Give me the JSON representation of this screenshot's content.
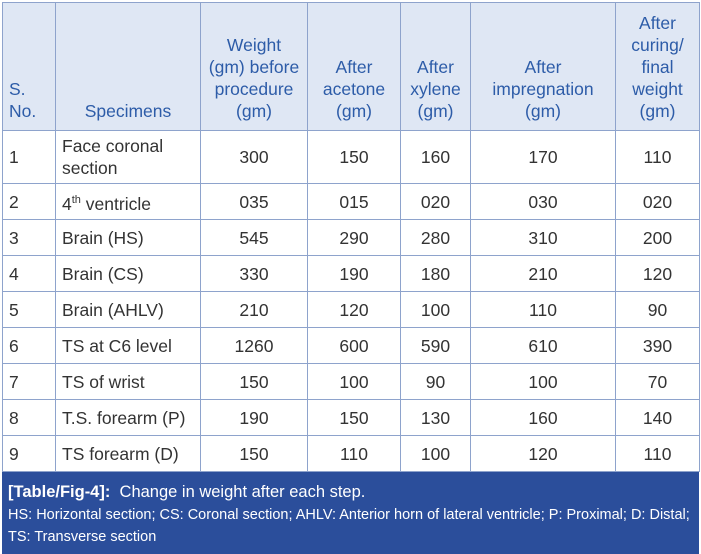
{
  "table": {
    "header": [
      "S. No.",
      "Specimens",
      "Weight (gm) before procedure (gm)",
      "After acetone (gm)",
      "After xylene (gm)",
      "After impregnation (gm)",
      "After curing/ final weight (gm)"
    ],
    "rows": [
      [
        "1",
        "Face coronal section",
        "300",
        "150",
        "160",
        "170",
        "110"
      ],
      [
        "2",
        {
          "base": "4",
          "sup": "th",
          "text": " ventricle"
        },
        "035",
        "015",
        "020",
        "030",
        "020"
      ],
      [
        "3",
        "Brain (HS)",
        "545",
        "290",
        "280",
        "310",
        "200"
      ],
      [
        "4",
        "Brain (CS)",
        "330",
        "190",
        "180",
        "210",
        "120"
      ],
      [
        "5",
        "Brain (AHLV)",
        "210",
        "120",
        "100",
        "110",
        "90"
      ],
      [
        "6",
        "TS at C6 level",
        "1260",
        "600",
        "590",
        "610",
        "390"
      ],
      [
        "7",
        "TS of wrist",
        "150",
        "100",
        "90",
        "100",
        "70"
      ],
      [
        "8",
        "T.S. forearm (P)",
        "190",
        "150",
        "130",
        "160",
        "140"
      ],
      [
        "9",
        "TS forearm (D)",
        "150",
        "110",
        "100",
        "120",
        "110"
      ]
    ]
  },
  "caption": {
    "label": "[Table/Fig-4]:",
    "text": "Change in weight after each step.",
    "note": "HS: Horizontal section; CS: Coronal section; AHLV: Anterior horn of lateral ventricle; P: Proximal; D: Distal; TS: Transverse section"
  }
}
